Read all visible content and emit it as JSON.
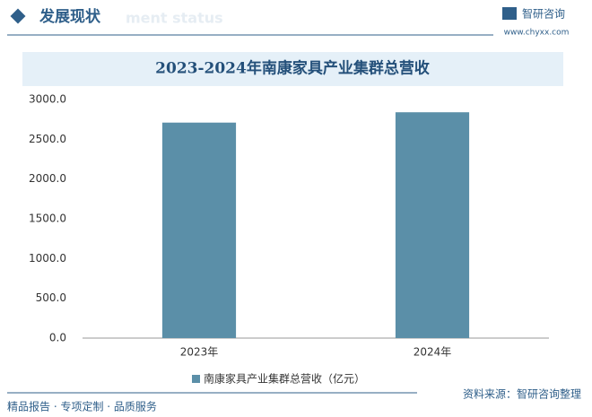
{
  "header": {
    "title": "发展现状",
    "subtitle": "ment status",
    "brand": "智研咨询",
    "url": "www.chyxx.com"
  },
  "chart_data": {
    "type": "bar",
    "title": "2023-2024年南康家具产业集群总营收",
    "categories": [
      "2023年",
      "2024年"
    ],
    "series": [
      {
        "name": "南康家具产业集群总营收（亿元）",
        "color": "#5b8fa8",
        "values": [
          2710,
          2840
        ]
      }
    ],
    "ylim": [
      0,
      3000
    ],
    "yticks": [
      {
        "value": 0,
        "label": "0.0"
      },
      {
        "value": 500,
        "label": "500.0"
      },
      {
        "value": 1000,
        "label": "1000.0"
      },
      {
        "value": 1500,
        "label": "1500.0"
      },
      {
        "value": 2000,
        "label": "2000.0"
      },
      {
        "value": 2500,
        "label": "2500.0"
      },
      {
        "value": 3000,
        "label": "3000.0"
      }
    ],
    "grid": false,
    "legend": "bottom"
  },
  "footer": {
    "left": "精品报告 · 专项定制 · 品质服务",
    "right": "资料来源：智研咨询整理"
  }
}
